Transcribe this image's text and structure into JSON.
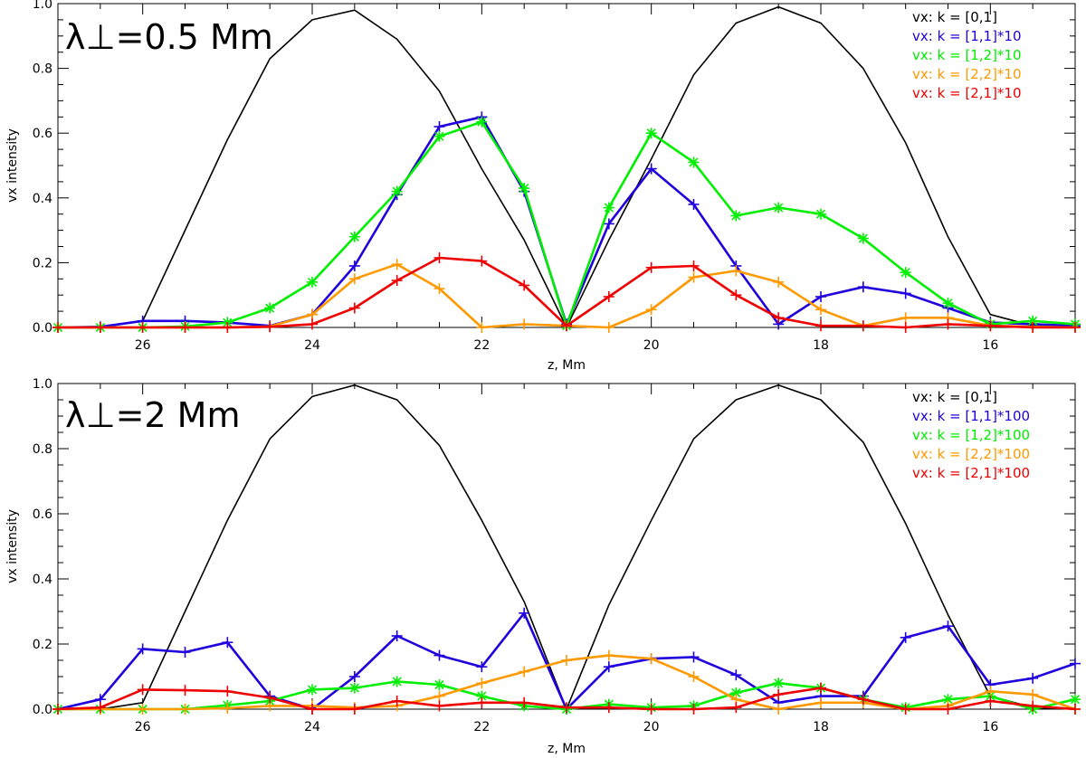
{
  "chart_data": [
    {
      "type": "line",
      "title": "λ⊥=0.5 Mm",
      "xlabel": "z, Mm",
      "ylabel": "vx intensity",
      "xlim": [
        27.0,
        15.0
      ],
      "ylim": [
        0,
        1.0
      ],
      "xticks": [
        26,
        24,
        22,
        20,
        18,
        16
      ],
      "yticks": [
        "0.0",
        "0.2",
        "0.4",
        "0.6",
        "0.8",
        "1.0"
      ],
      "legend_position": "top-right",
      "x": [
        27.0,
        26.5,
        26.0,
        25.5,
        25.0,
        24.5,
        24.0,
        23.5,
        23.0,
        22.5,
        22.0,
        21.5,
        21.0,
        20.5,
        20.0,
        19.5,
        19.0,
        18.5,
        18.0,
        17.5,
        17.0,
        16.5,
        16.0,
        15.5,
        15.0
      ],
      "series": [
        {
          "label": "vx:  k = [0,1]",
          "color": "#000000",
          "marker": "none",
          "values": [
            0.0,
            0.0,
            0.02,
            0.3,
            0.58,
            0.83,
            0.95,
            0.98,
            0.89,
            0.73,
            0.49,
            0.27,
            0.0,
            0.27,
            0.52,
            0.78,
            0.94,
            0.99,
            0.94,
            0.8,
            0.57,
            0.28,
            0.04,
            0.005,
            0.0
          ]
        },
        {
          "label": "vx:  k = [1,1]*10",
          "color": "#2000dd",
          "marker": "plus",
          "values": [
            0.0,
            0.002,
            0.02,
            0.02,
            0.015,
            0.005,
            0.04,
            0.19,
            0.41,
            0.62,
            0.65,
            0.42,
            0.01,
            0.32,
            0.49,
            0.38,
            0.19,
            0.01,
            0.095,
            0.125,
            0.105,
            0.06,
            0.015,
            0.01,
            0.005
          ]
        },
        {
          "label": "vx:  k = [1,2]*10",
          "color": "#00ee00",
          "marker": "asterisk",
          "values": [
            0.0,
            0.0,
            0.0,
            0.003,
            0.015,
            0.06,
            0.14,
            0.28,
            0.42,
            0.59,
            0.635,
            0.43,
            0.005,
            0.37,
            0.6,
            0.51,
            0.345,
            0.37,
            0.35,
            0.275,
            0.17,
            0.075,
            0.01,
            0.02,
            0.01
          ]
        },
        {
          "label": "vx:  k = [2,2]*10",
          "color": "#ff9900",
          "marker": "plus",
          "values": [
            0.0,
            0.0,
            0.0,
            0.0,
            0.0,
            0.003,
            0.04,
            0.15,
            0.195,
            0.12,
            0.0,
            0.01,
            0.005,
            0.0,
            0.055,
            0.155,
            0.175,
            0.14,
            0.055,
            0.005,
            0.03,
            0.03,
            0.005,
            0.002,
            0.0
          ]
        },
        {
          "label": "vx:  k = [2,1]*10",
          "color": "#ee0000",
          "marker": "plus",
          "values": [
            0.0,
            0.0,
            0.0,
            0.0,
            0.0,
            0.002,
            0.01,
            0.06,
            0.145,
            0.215,
            0.205,
            0.13,
            0.005,
            0.095,
            0.185,
            0.19,
            0.1,
            0.03,
            0.005,
            0.005,
            0.0,
            0.01,
            0.005,
            0.0,
            0.0
          ]
        }
      ]
    },
    {
      "type": "line",
      "title": "λ⊥=2 Mm",
      "xlabel": "z, Mm",
      "ylabel": "vx intensity",
      "xlim": [
        27.0,
        15.0
      ],
      "ylim": [
        0,
        1.0
      ],
      "xticks": [
        26,
        24,
        22,
        20,
        18,
        16
      ],
      "yticks": [
        "0.0",
        "0.2",
        "0.4",
        "0.6",
        "0.8",
        "1.0"
      ],
      "legend_position": "top-right",
      "x": [
        27.0,
        26.5,
        26.0,
        25.5,
        25.0,
        24.5,
        24.0,
        23.5,
        23.0,
        22.5,
        22.0,
        21.5,
        21.0,
        20.5,
        20.0,
        19.5,
        19.0,
        18.5,
        18.0,
        17.5,
        17.0,
        16.5,
        16.0,
        15.5,
        15.0
      ],
      "series": [
        {
          "label": "vx:  k = [0,1]",
          "color": "#000000",
          "marker": "none",
          "values": [
            0.0,
            0.0,
            0.02,
            0.3,
            0.58,
            0.83,
            0.96,
            0.995,
            0.95,
            0.81,
            0.58,
            0.33,
            0.0,
            0.32,
            0.58,
            0.83,
            0.95,
            0.995,
            0.95,
            0.82,
            0.57,
            0.29,
            0.04,
            0.005,
            0.0
          ]
        },
        {
          "label": "vx:  k = [1,1]*100",
          "color": "#2000dd",
          "marker": "plus",
          "values": [
            0.0,
            0.03,
            0.185,
            0.175,
            0.205,
            0.04,
            0.0,
            0.1,
            0.225,
            0.165,
            0.13,
            0.295,
            0.0,
            0.13,
            0.155,
            0.16,
            0.105,
            0.02,
            0.04,
            0.04,
            0.22,
            0.255,
            0.075,
            0.095,
            0.14
          ]
        },
        {
          "label": "vx:  k = [1,2]*100",
          "color": "#00ee00",
          "marker": "asterisk",
          "values": [
            0.0,
            0.0,
            0.0,
            0.0,
            0.012,
            0.025,
            0.06,
            0.065,
            0.085,
            0.075,
            0.04,
            0.01,
            0.0,
            0.015,
            0.005,
            0.01,
            0.05,
            0.08,
            0.065,
            0.03,
            0.005,
            0.03,
            0.04,
            0.0,
            0.03
          ]
        },
        {
          "label": "vx:  k = [2,2]*100",
          "color": "#ff9900",
          "marker": "plus",
          "values": [
            0.0,
            0.0,
            0.0,
            0.0,
            0.003,
            0.01,
            0.01,
            0.005,
            0.01,
            0.04,
            0.08,
            0.115,
            0.15,
            0.165,
            0.155,
            0.1,
            0.03,
            0.0,
            0.02,
            0.02,
            0.0,
            0.01,
            0.055,
            0.045,
            0.0
          ]
        },
        {
          "label": "vx:  k = [2,1]*100",
          "color": "#ee0000",
          "marker": "plus",
          "values": [
            0.0,
            0.005,
            0.06,
            0.058,
            0.055,
            0.035,
            0.0,
            0.0,
            0.025,
            0.01,
            0.02,
            0.02,
            0.005,
            0.005,
            0.0,
            0.0,
            0.005,
            0.045,
            0.065,
            0.03,
            0.0,
            0.0,
            0.025,
            0.01,
            0.0
          ]
        }
      ]
    }
  ]
}
